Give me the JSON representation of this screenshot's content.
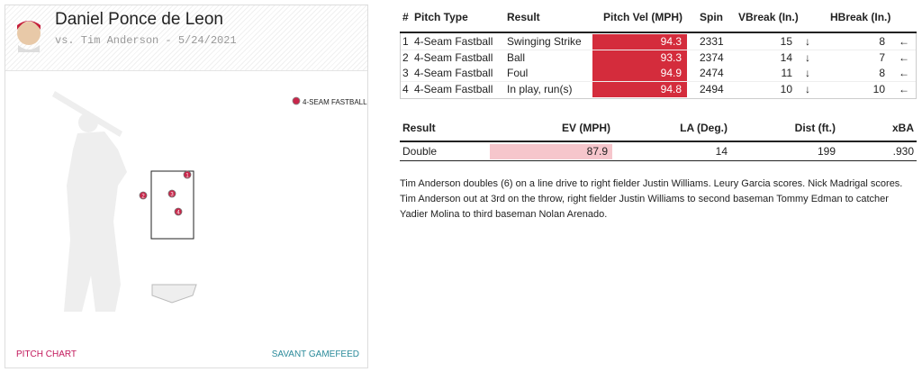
{
  "header": {
    "pitcher": "Daniel Ponce de Leon",
    "matchup": "vs. Tim Anderson - 5/24/2021"
  },
  "legend": "4-SEAM FASTBALL",
  "footer": {
    "left": "PITCH CHART",
    "right": "SAVANT GAMEFEED"
  },
  "pitches": {
    "columns": [
      "#",
      "Pitch Type",
      "Result",
      "Pitch Vel (MPH)",
      "Spin",
      "VBreak (In.)",
      "HBreak (In.)"
    ],
    "rows": [
      [
        1,
        "4-Seam Fastball",
        "Swinging Strike",
        94.3,
        2331,
        15,
        8
      ],
      [
        2,
        "4-Seam Fastball",
        "Ball",
        93.3,
        2374,
        14,
        7
      ],
      [
        3,
        "4-Seam Fastball",
        "Foul",
        94.9,
        2474,
        11,
        8
      ],
      [
        4,
        "4-Seam Fastball",
        "In play, run(s)",
        94.8,
        2494,
        10,
        10
      ]
    ]
  },
  "batted_ball": {
    "columns": [
      "Result",
      "EV (MPH)",
      "LA (Deg.)",
      "Dist (ft.)",
      "xBA"
    ],
    "rows": [
      [
        "Double",
        87.9,
        14,
        199,
        ".930"
      ]
    ]
  },
  "description": "Tim Anderson doubles (6) on a line drive to right fielder Justin Williams. Leury Garcia scores. Nick Madrigal scores. Tim Anderson out at 3rd on the throw, right fielder Justin Williams to second baseman Tommy Edman to catcher Yadier Molina to third baseman Nolan Arenado."
}
